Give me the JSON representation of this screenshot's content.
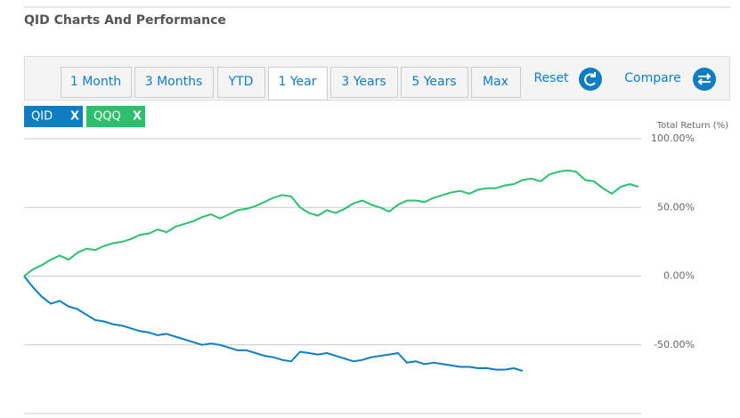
{
  "chart_data": {
    "type": "line",
    "title": "QID Charts And Performance",
    "range_tabs": [
      "1 Month",
      "3 Months",
      "YTD",
      "1 Year",
      "3 Years",
      "5 Years",
      "Max"
    ],
    "selected_tab": 3,
    "reset_label": "Reset",
    "compare_label": "Compare",
    "legend_close": "X",
    "y_axis_label": "Total Return (%)",
    "ylim": [
      -100,
      100
    ],
    "yticks": [
      {
        "value": 100,
        "label": "100.00%"
      },
      {
        "value": 50,
        "label": "50.00%"
      },
      {
        "value": 0,
        "label": "0.00%"
      },
      {
        "value": -50,
        "label": "-50.00%"
      }
    ],
    "grid": true,
    "series": [
      {
        "name": "QID",
        "color": "#0f7dc2",
        "values": [
          0,
          -8,
          -15,
          -20,
          -18,
          -22,
          -24,
          -28,
          -32,
          -33,
          -35,
          -36,
          -38,
          -40,
          -41,
          -43,
          -42,
          -44,
          -46,
          -48,
          -50,
          -49,
          -50,
          -52,
          -54,
          -54,
          -56,
          -58,
          -59,
          -61,
          -62,
          -55,
          -56,
          -57,
          -56,
          -58,
          -60,
          -62,
          -61,
          -59,
          -58,
          -57,
          -56,
          -63,
          -62,
          -64,
          -63,
          -64,
          -65,
          -66,
          -66,
          -67,
          -67,
          -68,
          -68,
          -67,
          -69,
          null,
          null,
          null,
          null,
          null,
          null,
          null,
          null,
          null,
          null,
          null,
          null,
          null
        ]
      },
      {
        "name": "QQQ",
        "color": "#2bbf6e",
        "values": [
          0,
          5,
          8,
          12,
          15,
          12,
          17,
          20,
          19,
          22,
          24,
          25,
          27,
          30,
          31,
          34,
          32,
          36,
          38,
          40,
          43,
          45,
          42,
          45,
          48,
          49,
          51,
          54,
          57,
          59,
          58,
          50,
          46,
          44,
          48,
          46,
          49,
          53,
          55,
          52,
          50,
          47,
          52,
          55,
          55,
          54,
          57,
          59,
          61,
          62,
          60,
          63,
          64,
          64,
          66,
          67,
          70,
          71,
          69,
          74,
          76,
          77,
          76,
          70,
          69,
          64,
          60,
          65,
          67,
          65
        ]
      }
    ]
  }
}
